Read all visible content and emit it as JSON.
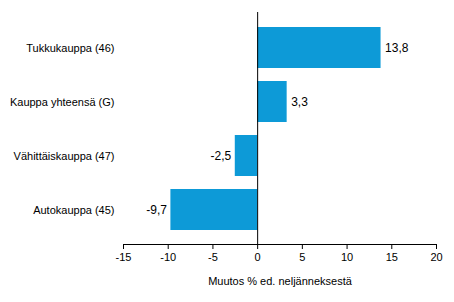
{
  "chart_data": {
    "type": "bar",
    "orientation": "horizontal",
    "categories": [
      "Tukkukauppa (46)",
      "Kauppa yhteensä (G)",
      "Vähittäiskauppa (47)",
      "Autokauppa (45)"
    ],
    "values": [
      13.8,
      3.3,
      -2.5,
      -9.7
    ],
    "value_labels": [
      "13,8",
      "3,3",
      "-2,5",
      "-9,7"
    ],
    "data_labels": true,
    "color": "#0d9ad7",
    "x_label": "Muutos % ed. neljänneksestä",
    "xlim": [
      -15,
      20
    ],
    "xticks": [
      -15,
      -10,
      -5,
      0,
      5,
      10,
      15,
      20
    ],
    "grid": false
  }
}
